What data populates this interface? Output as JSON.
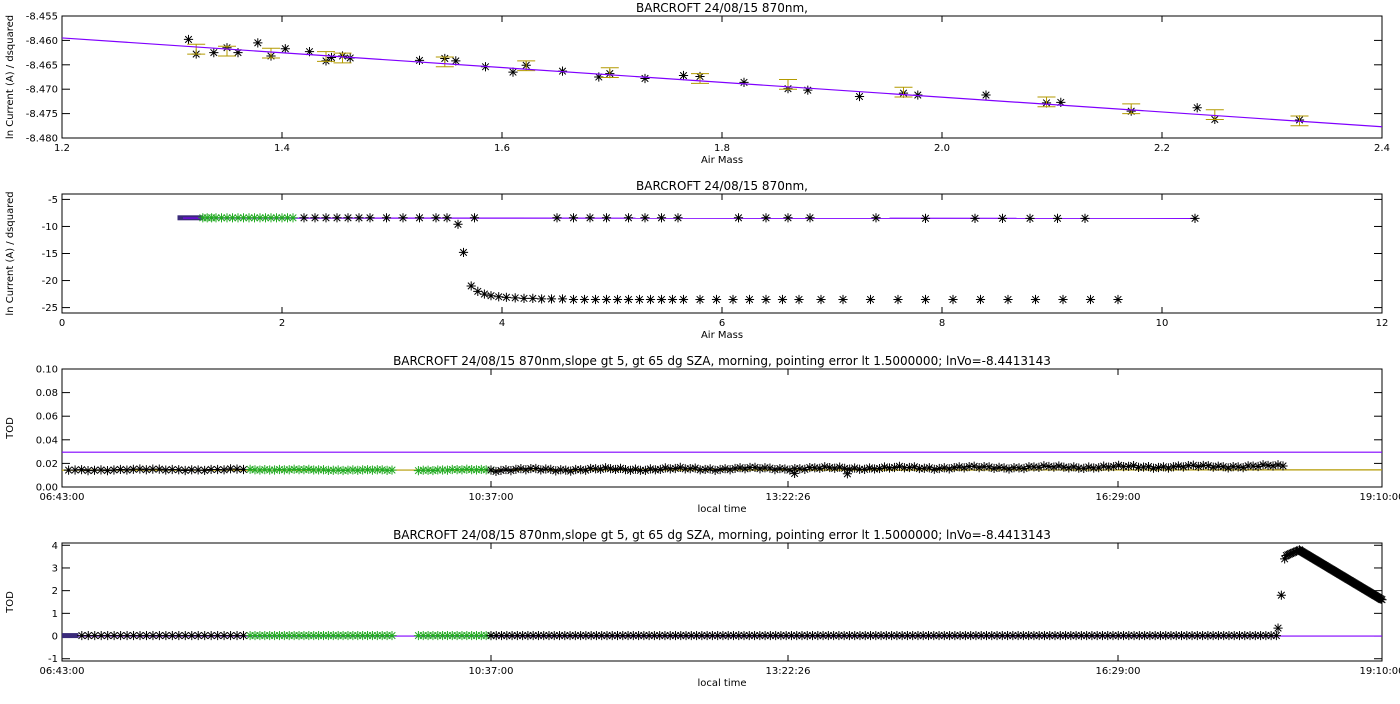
{
  "chart_data": [
    {
      "type": "scatter",
      "title": "BARCROFT 24/08/15 870nm,",
      "xlabel": "Air Mass",
      "ylabel": "ln Current (A) / dsquared",
      "xlim": [
        1.2,
        2.4
      ],
      "ylim": [
        -8.48,
        -8.455
      ],
      "xticks": [
        1.2,
        1.4,
        1.6,
        1.8,
        2.0,
        2.2,
        2.4
      ],
      "xtick_labels": [
        "1.2",
        "1.4",
        "1.6",
        "1.8",
        "2.0",
        "2.2",
        "2.4"
      ],
      "yticks": [
        -8.48,
        -8.475,
        -8.47,
        -8.465,
        -8.46,
        -8.455
      ],
      "ytick_labels": [
        "-8.480",
        "-8.475",
        "-8.470",
        "-8.465",
        "-8.460",
        "-8.455"
      ],
      "grid": false,
      "colors": {
        "fit": "#8000ff",
        "errorbar": "#b39a00",
        "points": "#000000"
      },
      "series": [
        {
          "kind": "points",
          "color": "#000000",
          "x": [
            1.315,
            1.322,
            1.338,
            1.35,
            1.36,
            1.378,
            1.39,
            1.403,
            1.425,
            1.44,
            1.445,
            1.455,
            1.462,
            1.525,
            1.548,
            1.558,
            1.585,
            1.61,
            1.622,
            1.655,
            1.688,
            1.698,
            1.73,
            1.765,
            1.78,
            1.82,
            1.86,
            1.878,
            1.925,
            1.965,
            1.978,
            2.04,
            2.095,
            2.108,
            2.172,
            2.232,
            2.248,
            2.325
          ],
          "y": [
            -8.4598,
            -8.4628,
            -8.4625,
            -8.4615,
            -8.4625,
            -8.4605,
            -8.4632,
            -8.4617,
            -8.4623,
            -8.4642,
            -8.4635,
            -8.4632,
            -8.4636,
            -8.4641,
            -8.4637,
            -8.4642,
            -8.4654,
            -8.4665,
            -8.4651,
            -8.4663,
            -8.4675,
            -8.4668,
            -8.4678,
            -8.4672,
            -8.4674,
            -8.4686,
            -8.4699,
            -8.4702,
            -8.4715,
            -8.4708,
            -8.4712,
            -8.4712,
            -8.4728,
            -8.4727,
            -8.4745,
            -8.4738,
            -8.4762,
            -8.4763
          ]
        },
        {
          "kind": "errorbars",
          "color": "#b39a00",
          "halfwidth": 0.001,
          "x": [
            1.322,
            1.35,
            1.39,
            1.44,
            1.455,
            1.548,
            1.622,
            1.698,
            1.78,
            1.86,
            1.965,
            2.095,
            2.172,
            2.248,
            2.325
          ],
          "y": [
            -8.4618,
            -8.4622,
            -8.4626,
            -8.4633,
            -8.4636,
            -8.4644,
            -8.4652,
            -8.4666,
            -8.4678,
            -8.469,
            -8.4706,
            -8.4726,
            -8.474,
            -8.4752,
            -8.4765
          ]
        },
        {
          "kind": "fit",
          "color": "#8000ff",
          "x": [
            1.2,
            2.4
          ],
          "y": [
            -8.4595,
            -8.4777
          ]
        }
      ]
    },
    {
      "type": "scatter",
      "title": "BARCROFT 24/08/15 870nm,",
      "xlabel": "Air Mass",
      "ylabel": "ln Current (A) / dsquared",
      "xlim": [
        0,
        12
      ],
      "ylim": [
        -26,
        -4
      ],
      "xticks": [
        0,
        2,
        4,
        6,
        8,
        10,
        12
      ],
      "xtick_labels": [
        "0",
        "2",
        "4",
        "6",
        "8",
        "10",
        "12"
      ],
      "yticks": [
        -25,
        -20,
        -15,
        -10,
        -5
      ],
      "ytick_labels": [
        "-25",
        "-20",
        "-15",
        "-10",
        "-5"
      ],
      "grid": false,
      "colors": {
        "fit": "#8000ff",
        "selected": "#22aa22",
        "points": "#000000",
        "band": "#3a2a7a"
      },
      "series": [
        {
          "kind": "band",
          "color": "#3a2a7a",
          "x": [
            1.05,
            1.28
          ],
          "y": [
            -8.4,
            -8.4
          ]
        },
        {
          "kind": "fit",
          "color": "#8000ff",
          "x": [
            1.1,
            10.3
          ],
          "y": [
            -8.45,
            -8.5
          ]
        },
        {
          "kind": "points",
          "color": "#22aa22",
          "x": [
            1.28,
            1.32,
            1.36,
            1.4,
            1.45,
            1.5,
            1.55,
            1.6,
            1.65,
            1.7,
            1.75,
            1.8,
            1.85,
            1.9,
            1.95,
            2.0,
            2.05,
            2.1
          ],
          "y": [
            -8.4,
            -8.4,
            -8.4,
            -8.4,
            -8.4,
            -8.4,
            -8.4,
            -8.4,
            -8.4,
            -8.4,
            -8.4,
            -8.4,
            -8.4,
            -8.4,
            -8.4,
            -8.4,
            -8.4,
            -8.4
          ]
        },
        {
          "kind": "points",
          "color": "#000000",
          "x": [
            2.2,
            2.3,
            2.4,
            2.5,
            2.6,
            2.7,
            2.8,
            2.95,
            3.1,
            3.25,
            3.4,
            3.5,
            3.75,
            4.5,
            4.65,
            4.8,
            4.95,
            5.15,
            5.3,
            5.45,
            5.6,
            6.15,
            6.4,
            6.6,
            6.8,
            7.4,
            7.85,
            8.3,
            8.55,
            8.8,
            9.05,
            9.3,
            10.3
          ],
          "y": [
            -8.4,
            -8.4,
            -8.4,
            -8.4,
            -8.4,
            -8.4,
            -8.4,
            -8.4,
            -8.4,
            -8.4,
            -8.4,
            -8.4,
            -8.4,
            -8.4,
            -8.4,
            -8.4,
            -8.4,
            -8.4,
            -8.4,
            -8.4,
            -8.4,
            -8.4,
            -8.4,
            -8.4,
            -8.4,
            -8.4,
            -8.5,
            -8.5,
            -8.5,
            -8.5,
            -8.5,
            -8.5,
            -8.5
          ]
        },
        {
          "kind": "points",
          "color": "#000000",
          "x": [
            3.6,
            3.65,
            3.72,
            3.78,
            3.84,
            3.9,
            3.97,
            4.04,
            4.12,
            4.2,
            4.28,
            4.36,
            4.45,
            4.55,
            4.65,
            4.75,
            4.85,
            4.95,
            5.05,
            5.15,
            5.25,
            5.35,
            5.45,
            5.55,
            5.65,
            5.8,
            5.95,
            6.1,
            6.25,
            6.4,
            6.55,
            6.7,
            6.9,
            7.1,
            7.35,
            7.6,
            7.85,
            8.1,
            8.35,
            8.6,
            8.85,
            9.1,
            9.35,
            9.6
          ],
          "y": [
            -9.6,
            -14.8,
            -21.0,
            -22.0,
            -22.5,
            -22.8,
            -23.0,
            -23.1,
            -23.2,
            -23.3,
            -23.3,
            -23.4,
            -23.4,
            -23.4,
            -23.5,
            -23.5,
            -23.5,
            -23.5,
            -23.5,
            -23.5,
            -23.5,
            -23.5,
            -23.5,
            -23.5,
            -23.5,
            -23.5,
            -23.5,
            -23.5,
            -23.5,
            -23.5,
            -23.5,
            -23.5,
            -23.5,
            -23.5,
            -23.5,
            -23.5,
            -23.5,
            -23.5,
            -23.5,
            -23.5,
            -23.5,
            -23.5,
            -23.5,
            -23.5
          ]
        }
      ]
    },
    {
      "type": "scatter",
      "title": "BARCROFT 24/08/15 870nm,slope gt 5, gt 65 dg SZA, morning, pointing error lt 1.5000000; lnVo=-8.4413143",
      "xlabel": "local time",
      "ylabel": "TOD",
      "xlim": [
        0,
        4
      ],
      "ylim": [
        0,
        0.1
      ],
      "xticks": [
        0,
        1.3,
        2.2,
        3.2,
        4
      ],
      "xtick_labels": [
        "06:43:00",
        "10:37:00",
        "13:22:26",
        "16:29:00",
        "19:10:00"
      ],
      "yticks": [
        0,
        0.02,
        0.04,
        0.06,
        0.08,
        0.1
      ],
      "ytick_labels": [
        "0.00",
        "0.02",
        "0.04",
        "0.06",
        "0.08",
        "0.10"
      ],
      "grid": false,
      "colors": {
        "hline": "#8000ff",
        "trend": "#b39a00",
        "selected": "#22aa22",
        "points": "#000000"
      },
      "series": [
        {
          "kind": "hline",
          "color": "#8000ff",
          "x": [
            0,
            4
          ],
          "y": [
            0.0295,
            0.0295
          ]
        },
        {
          "kind": "trend",
          "color": "#b39a00",
          "x": [
            0,
            4
          ],
          "y": [
            0.0143,
            0.0145
          ]
        },
        {
          "kind": "dense",
          "color": "#000000",
          "x_from": 0.02,
          "x_to": 0.55,
          "n": 28,
          "y_start": 0.0145,
          "y_end": 0.0148,
          "jitter": 0.0008
        },
        {
          "kind": "dense",
          "color": "#22aa22",
          "x_from": 0.57,
          "x_to": 1.0,
          "n": 30,
          "y_start": 0.0148,
          "y_end": 0.0142,
          "jitter": 0.0005
        },
        {
          "kind": "dense",
          "color": "#22aa22",
          "x_from": 1.08,
          "x_to": 1.3,
          "n": 16,
          "y_start": 0.0143,
          "y_end": 0.0147,
          "jitter": 0.0005
        },
        {
          "kind": "dense",
          "color": "#000000",
          "x_from": 1.3,
          "x_to": 3.7,
          "n": 160,
          "y_start": 0.0145,
          "y_end": 0.0177,
          "jitter": 0.0014
        },
        {
          "kind": "points",
          "color": "#000000",
          "x": [
            2.22,
            2.38
          ],
          "y": [
            0.0115,
            0.0112
          ]
        }
      ]
    },
    {
      "type": "scatter",
      "title": "BARCROFT 24/08/15 870nm,slope gt 5, gt 65 dg SZA, morning, pointing error lt 1.5000000; lnVo=-8.4413143",
      "xlabel": "local time",
      "ylabel": "TOD",
      "xlim": [
        0,
        4
      ],
      "ylim": [
        -1.1,
        4.1
      ],
      "xticks": [
        0,
        1.3,
        2.2,
        3.2,
        4
      ],
      "xtick_labels": [
        "06:43:00",
        "10:37:00",
        "13:22:26",
        "16:29:00",
        "19:10:00"
      ],
      "yticks": [
        -1,
        0,
        1,
        2,
        3,
        4
      ],
      "ytick_labels": [
        "-1",
        "0",
        "1",
        "2",
        "3",
        "4"
      ],
      "grid": false,
      "colors": {
        "hline": "#8000ff",
        "selected": "#22aa22",
        "points": "#000000",
        "band": "#3a2a7a"
      },
      "series": [
        {
          "kind": "hline",
          "color": "#8000ff",
          "x": [
            0,
            4
          ],
          "y": [
            0.0,
            0.0
          ]
        },
        {
          "kind": "band",
          "color": "#3a2a7a",
          "x": [
            0.0,
            0.05
          ],
          "y": [
            0.02,
            0.02
          ]
        },
        {
          "kind": "dense",
          "color": "#000000",
          "x_from": 0.06,
          "x_to": 0.55,
          "n": 26,
          "y_start": 0.02,
          "y_end": 0.02,
          "jitter": 0.0
        },
        {
          "kind": "dense",
          "color": "#22aa22",
          "x_from": 0.57,
          "x_to": 1.0,
          "n": 30,
          "y_start": 0.02,
          "y_end": 0.02,
          "jitter": 0.0
        },
        {
          "kind": "dense",
          "color": "#22aa22",
          "x_from": 1.08,
          "x_to": 1.3,
          "n": 16,
          "y_start": 0.02,
          "y_end": 0.02,
          "jitter": 0.0
        },
        {
          "kind": "dense",
          "color": "#000000",
          "x_from": 1.3,
          "x_to": 3.68,
          "n": 150,
          "y_start": 0.02,
          "y_end": 0.02,
          "jitter": 0.0
        },
        {
          "kind": "points",
          "color": "#000000",
          "x": [
            3.685,
            3.695,
            3.705
          ],
          "y": [
            0.35,
            1.8,
            3.4
          ]
        },
        {
          "kind": "dense",
          "color": "#000000",
          "x_from": 3.71,
          "x_to": 3.75,
          "n": 10,
          "y_start": 3.55,
          "y_end": 3.8,
          "jitter": 0.0
        },
        {
          "kind": "dense",
          "color": "#000000",
          "x_from": 3.75,
          "x_to": 4.0,
          "n": 90,
          "y_start": 3.78,
          "y_end": 1.6,
          "jitter": 0.0
        }
      ]
    }
  ]
}
